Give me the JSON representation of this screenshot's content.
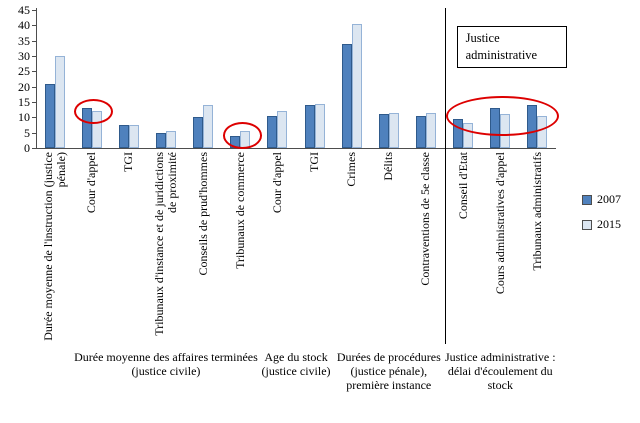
{
  "chart_data": {
    "type": "bar",
    "title": "",
    "ylim": [
      0,
      45
    ],
    "yticks": [
      0,
      5,
      10,
      15,
      20,
      25,
      30,
      35,
      40,
      45
    ],
    "grid": false,
    "legend_position": "right",
    "categories": [
      "Durée moyenne de l'instruction (justice pénale)",
      "Cour d'appel",
      "TGI",
      "Tribunaux d'instance et de juridictions de proximité",
      "Conseils de prud'hommes",
      "Tribunaux de commerce",
      "Cour d'appel",
      "TGI",
      "Crimes",
      "Délits",
      "Contraventions de 5e classe",
      "Conseil d'Etat",
      "Cours administratives d'appel",
      "Tribunaux administratifs"
    ],
    "series": [
      {
        "name": "2007",
        "fill": "#4f81bd",
        "border": "#2f5a8b",
        "values": [
          21,
          13,
          7.5,
          5,
          10,
          4,
          10.5,
          14,
          34,
          11,
          10.5,
          9.5,
          13,
          14
        ]
      },
      {
        "name": "2015",
        "fill": "#dce6f1",
        "border": "#95b3d7",
        "values": [
          30,
          12,
          7.5,
          5.5,
          14,
          5.5,
          12,
          14.5,
          40.5,
          11.5,
          11.5,
          8,
          11,
          10.5
        ]
      }
    ],
    "groups": [
      {
        "label": "Durée moyenne des affaires terminées (justice civile)",
        "start": 1,
        "end": 5
      },
      {
        "label": "Age du stock (justice civile)",
        "start": 6,
        "end": 7
      },
      {
        "label": "Durées de procédures (justice pénale), première instance",
        "start": 8,
        "end": 10
      },
      {
        "label": "Justice administrative : délai d'écoulement du stock",
        "start": 11,
        "end": 13
      }
    ],
    "annotations": {
      "divider_before_category": 11,
      "box_label": "Justice administrative",
      "ellipse_color": "#dd0000",
      "ellipses": [
        {
          "categories": [
            1
          ]
        },
        {
          "categories": [
            5
          ]
        },
        {
          "categories": [
            11,
            12,
            13
          ]
        }
      ]
    }
  }
}
